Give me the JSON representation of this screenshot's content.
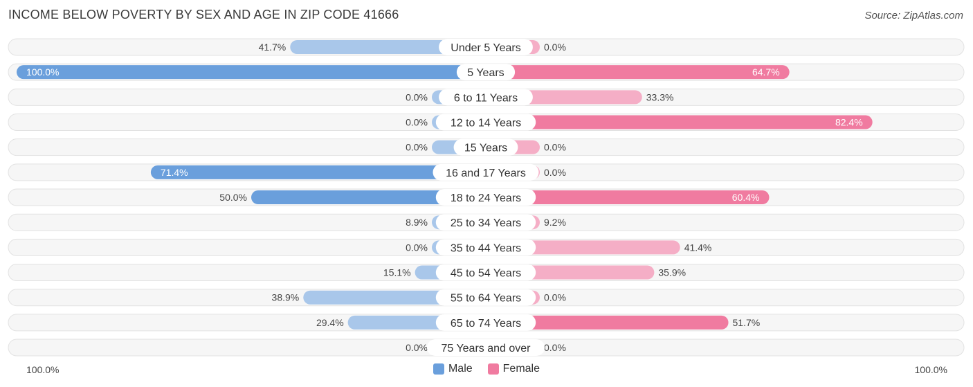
{
  "title": "INCOME BELOW POVERTY BY SEX AND AGE IN ZIP CODE 41666",
  "source": "Source: ZipAtlas.com",
  "colors": {
    "male_strong": "#6a9fdc",
    "male_light": "#a9c7ea",
    "female_strong": "#f07ba0",
    "female_light": "#f5aec6",
    "track": "#efefef"
  },
  "chart_data": {
    "type": "bar",
    "orientation": "horizontal-diverging",
    "categories": [
      "Under 5 Years",
      "5 Years",
      "6 to 11 Years",
      "12 to 14 Years",
      "15 Years",
      "16 and 17 Years",
      "18 to 24 Years",
      "25 to 34 Years",
      "35 to 44 Years",
      "45 to 54 Years",
      "55 to 64 Years",
      "65 to 74 Years",
      "75 Years and over"
    ],
    "series": [
      {
        "name": "Male",
        "values": [
          41.7,
          100.0,
          0.0,
          0.0,
          0.0,
          71.4,
          50.0,
          8.9,
          0.0,
          15.1,
          38.9,
          29.4,
          0.0
        ],
        "labels": [
          "41.7%",
          "100.0%",
          "0.0%",
          "0.0%",
          "0.0%",
          "71.4%",
          "50.0%",
          "8.9%",
          "0.0%",
          "15.1%",
          "38.9%",
          "29.4%",
          "0.0%"
        ]
      },
      {
        "name": "Female",
        "values": [
          0.0,
          64.7,
          33.3,
          82.4,
          0.0,
          0.0,
          60.4,
          9.2,
          41.4,
          35.9,
          0.0,
          51.7,
          0.0
        ],
        "labels": [
          "0.0%",
          "64.7%",
          "33.3%",
          "82.4%",
          "0.0%",
          "0.0%",
          "60.4%",
          "9.2%",
          "41.4%",
          "35.9%",
          "0.0%",
          "51.7%",
          "0.0%"
        ]
      }
    ],
    "xlim": [
      0,
      100
    ],
    "axis_left_label": "100.0%",
    "axis_right_label": "100.0%",
    "legend_position": "bottom-center"
  }
}
